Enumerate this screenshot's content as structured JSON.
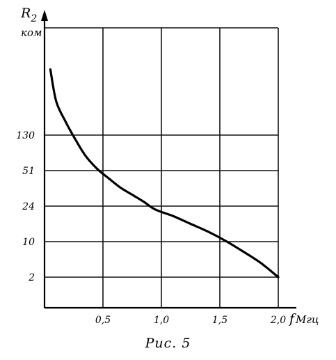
{
  "chart_data": {
    "type": "line",
    "y_axis_label": "R",
    "y_axis_label_subscript": "2",
    "y_axis_unit": "ком",
    "x_axis_label": "f",
    "x_axis_unit": "Мгц",
    "x_ticks": [
      "0,5",
      "1,0",
      "1,5",
      "2,0"
    ],
    "x_tick_values": [
      0.5,
      1.0,
      1.5,
      2.0
    ],
    "y_ticks": [
      "2",
      "10",
      "24",
      "51",
      "130"
    ],
    "xlim": [
      0,
      2.0
    ],
    "grid": true,
    "series": [
      {
        "x": [
          0.05,
          0.1,
          0.18,
          0.26,
          0.35,
          0.45,
          0.55,
          0.65,
          0.75,
          0.85,
          0.95,
          1.1,
          1.25,
          1.4,
          1.55,
          1.7,
          1.85,
          2.0
        ],
        "y_on_tick_scale": [
          5.85,
          4.95,
          4.38,
          3.9,
          3.42,
          3.05,
          2.78,
          2.52,
          2.32,
          2.12,
          1.9,
          1.72,
          1.5,
          1.28,
          1.02,
          0.72,
          0.4,
          0.0
        ]
      }
    ]
  },
  "caption": "Рис. 5"
}
